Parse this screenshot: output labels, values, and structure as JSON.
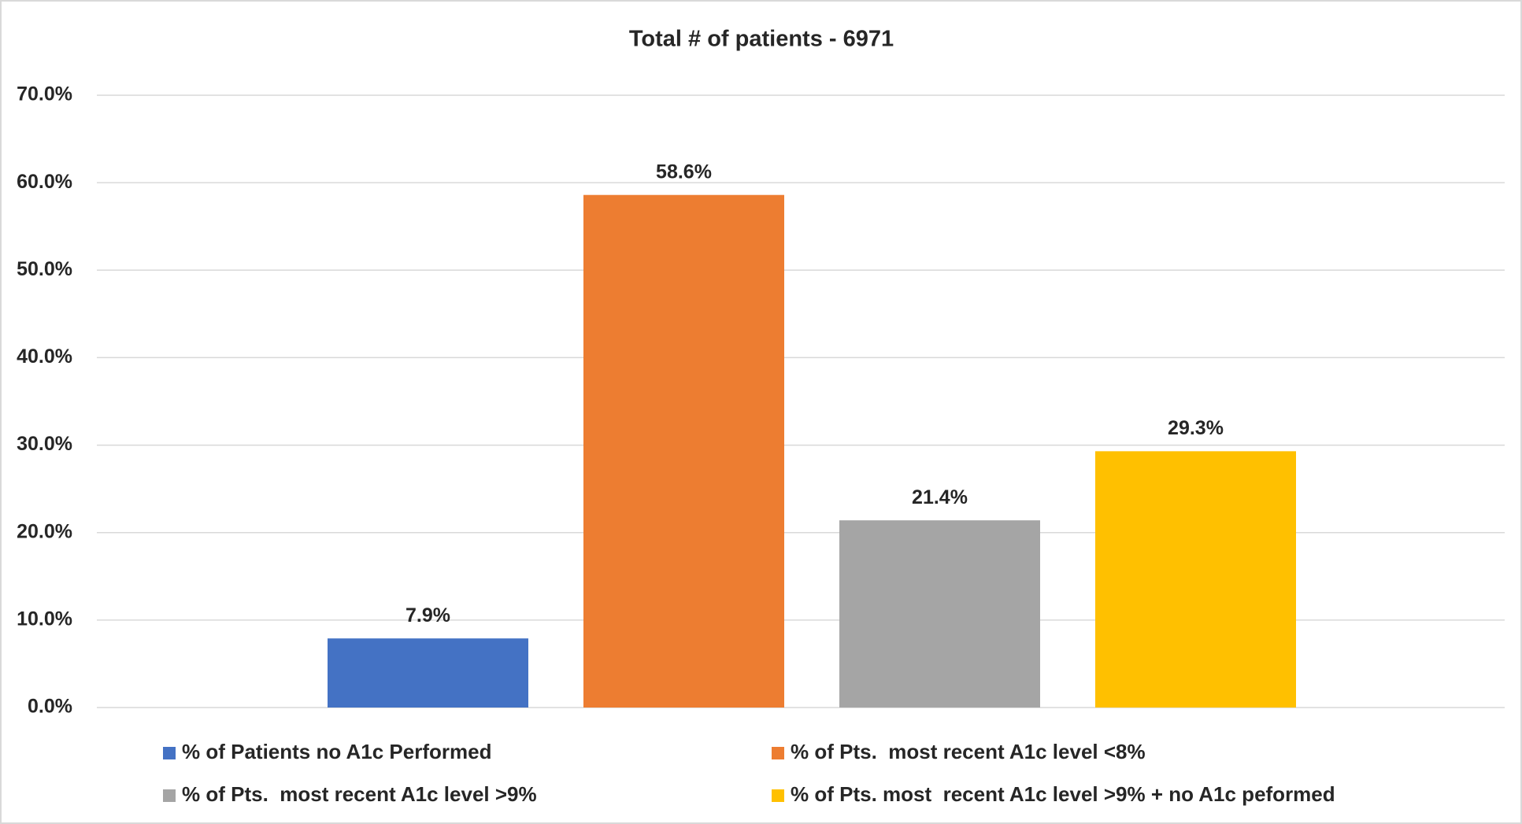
{
  "chart_data": {
    "type": "bar",
    "title": "Total # of patients - 6971",
    "categories": [
      null
    ],
    "series": [
      {
        "name": "% of Patients no A1c Performed",
        "color": "#4472c4",
        "values": [
          7.9
        ],
        "value_labels": [
          "7.9%"
        ]
      },
      {
        "name": "% of Pts.  most recent A1c level <8%",
        "color": "#ed7d31",
        "values": [
          58.6
        ],
        "value_labels": [
          "58.6%"
        ]
      },
      {
        "name": "% of Pts.  most recent A1c level >9%",
        "color": "#a5a5a5",
        "values": [
          21.4
        ],
        "value_labels": [
          "21.4%"
        ]
      },
      {
        "name": "% of Pts. most  recent A1c level >9% + no A1c peformed",
        "color": "#ffc000",
        "values": [
          29.3
        ],
        "value_labels": [
          "29.3%"
        ]
      }
    ],
    "ylim": [
      0,
      70
    ],
    "yticks": [
      {
        "value": 0,
        "label": "0.0%"
      },
      {
        "value": 10,
        "label": "10.0%"
      },
      {
        "value": 20,
        "label": "20.0%"
      },
      {
        "value": 30,
        "label": "30.0%"
      },
      {
        "value": 40,
        "label": "40.0%"
      },
      {
        "value": 50,
        "label": "50.0%"
      },
      {
        "value": 60,
        "label": "60.0%"
      },
      {
        "value": 70,
        "label": "70.0%"
      }
    ],
    "grid": true,
    "legend": "bottom"
  }
}
